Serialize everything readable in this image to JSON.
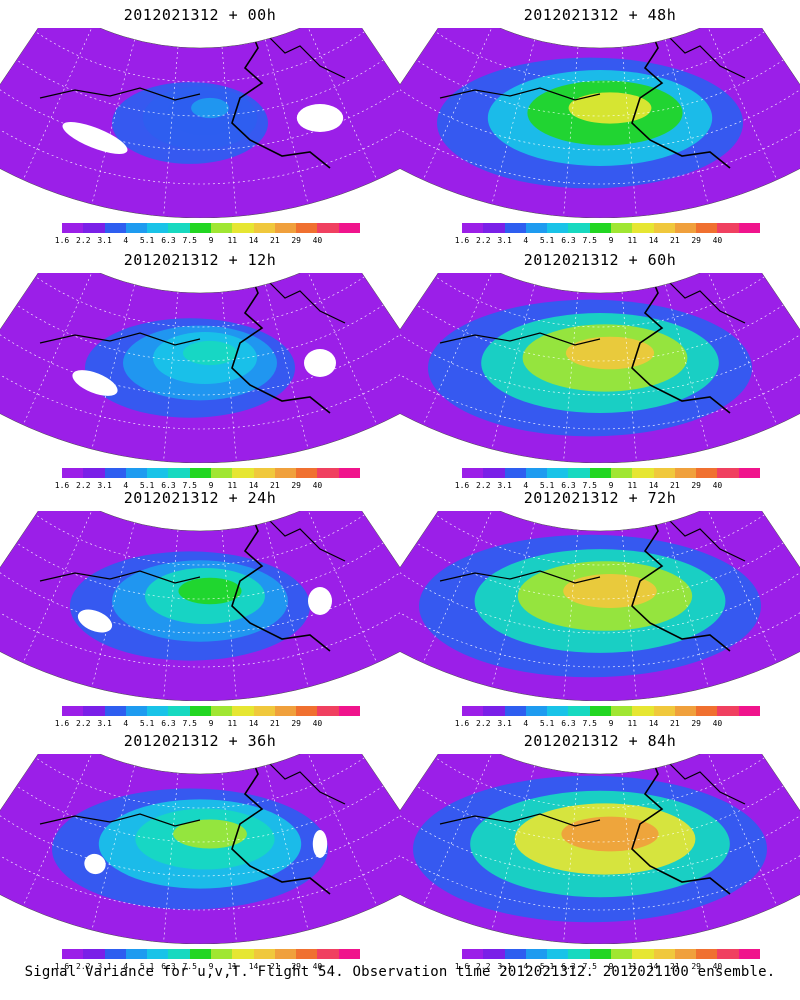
{
  "colorbar": {
    "labels": [
      "1.6",
      "2.2",
      "3.1",
      "4",
      "5.1",
      "6.3",
      "7.5",
      "9",
      "11",
      "14",
      "21",
      "29",
      "40"
    ],
    "colors": [
      "#9b1fe8",
      "#7a20e8",
      "#2e5ef0",
      "#1e9bf0",
      "#19c3e8",
      "#17d9c0",
      "#22d622",
      "#a0e632",
      "#e6e632",
      "#f0c83c",
      "#f0a03c",
      "#f07030",
      "#f04060",
      "#f0148c"
    ]
  },
  "panels": [
    {
      "id": "p00",
      "title": "2012021312 + 00h",
      "level": 0.12
    },
    {
      "id": "p48",
      "title": "2012021312 + 48h",
      "level": 0.62
    },
    {
      "id": "p12",
      "title": "2012021312 + 12h",
      "level": 0.3
    },
    {
      "id": "p60",
      "title": "2012021312 + 60h",
      "level": 0.68
    },
    {
      "id": "p24",
      "title": "2012021312 + 24h",
      "level": 0.4
    },
    {
      "id": "p72",
      "title": "2012021312 + 72h",
      "level": 0.74
    },
    {
      "id": "p36",
      "title": "2012021312 + 36h",
      "level": 0.52
    },
    {
      "id": "p84",
      "title": "2012021312 + 84h",
      "level": 0.78
    }
  ],
  "footer": "Signal Variance for u,v,T. Flight 54. Observation time 2012021312. 2012021100 ensemble."
}
